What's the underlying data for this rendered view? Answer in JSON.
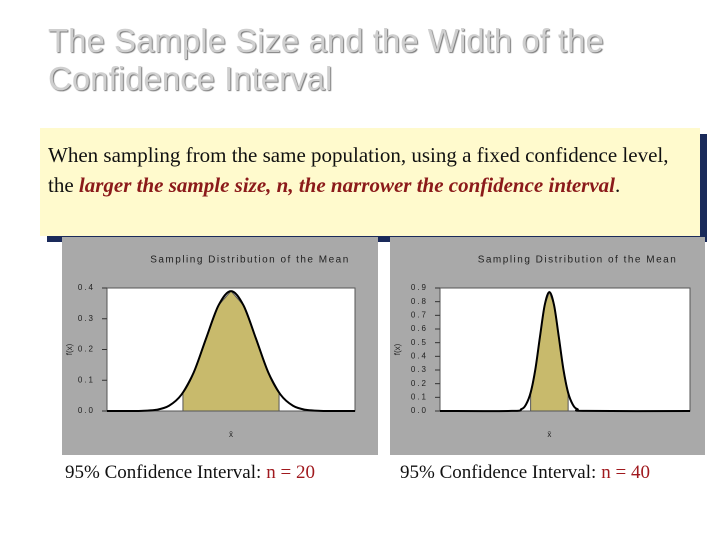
{
  "title": "The Sample Size and the Width of the Confidence Interval",
  "text_before": "When sampling from the same population, using a fixed confidence level, the",
  "text_emphasis": "larger the sample size, n, the narrower the confidence interval",
  "text_after": ".",
  "chart_data": [
    {
      "type": "line",
      "title": "Sampling Distribution of the Mean",
      "y_label": "f(x)",
      "x_label": "x̄",
      "x": [
        -4,
        -3.2,
        -2.8,
        -2.4,
        -2,
        -1.6,
        -1.2,
        -0.8,
        -0.4,
        0,
        0.4,
        0.8,
        1.2,
        1.6,
        2,
        2.4,
        2.8,
        3.2,
        4
      ],
      "values": [
        0,
        0,
        0.001,
        0.004,
        0.017,
        0.053,
        0.126,
        0.237,
        0.344,
        0.39,
        0.344,
        0.237,
        0.126,
        0.053,
        0.017,
        0.004,
        0.001,
        0,
        0
      ],
      "ci": [
        -1.55,
        1.55
      ],
      "color": "#c8ba6c",
      "xlim": [
        -4,
        4
      ],
      "ylim": [
        0,
        0.4
      ],
      "yticks": [
        {
          "value": 0,
          "label": "0.0"
        },
        0.1,
        0.2,
        0.3,
        0.4
      ],
      "caption": "95% Confidence Interval:",
      "caption_n": "n = 20"
    },
    {
      "type": "line",
      "title": "Sampling Distribution of the Mean",
      "y_label": "f(x)",
      "x_label": "x̄",
      "x": [
        -4,
        -1.7,
        -1.4,
        -1.25,
        -1.1,
        -0.95,
        -0.8,
        -0.65,
        -0.5,
        -0.35,
        -0.2,
        -0.05,
        0.1,
        0.25,
        0.4,
        0.7,
        4
      ],
      "values": [
        0,
        0.0005,
        0.013,
        0.047,
        0.134,
        0.303,
        0.545,
        0.774,
        0.87,
        0.774,
        0.545,
        0.303,
        0.134,
        0.047,
        0.013,
        0.0005,
        0
      ],
      "ci": [
        -1.1,
        0.1
      ],
      "color": "#c8ba6c",
      "xlim": [
        -4,
        4
      ],
      "ylim": [
        0,
        0.9
      ],
      "yticks": [
        {
          "value": 0,
          "label": "0.0"
        },
        0.1,
        0.2,
        0.3,
        0.4,
        0.5,
        0.6,
        0.7,
        0.8,
        0.9
      ],
      "caption": "95% Confidence Interval:",
      "caption_n": "n = 40"
    }
  ]
}
